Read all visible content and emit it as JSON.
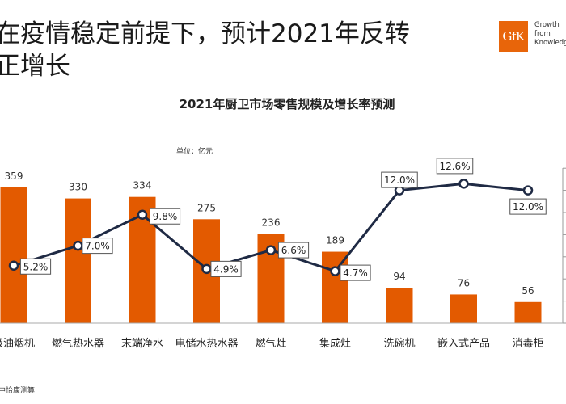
{
  "header": {
    "title_line1": "在疫情稳定前提下，预计2021年反转",
    "title_line2": "正增长",
    "logo_text": "GfK",
    "tagline": "Growth\nfrom\nKnowledge"
  },
  "footer": {
    "source": "中怡康测算"
  },
  "colors": {
    "bar": "#e35a00",
    "line": "#1f2a44",
    "logo": "#e8650a"
  },
  "chart_data": {
    "type": "bar",
    "title": "2021年厨卫市场零售规模及增长率预测",
    "unit": "单位：亿元",
    "categories": [
      "吸油烟机",
      "燃气热水器",
      "末端净水",
      "电储水热水器",
      "燃气灶",
      "集成灶",
      "洗碗机",
      "嵌入式产品",
      "消毒柜"
    ],
    "series": [
      {
        "type": "bar",
        "values": [
          359,
          330,
          334,
          275,
          236,
          189,
          94,
          76,
          56
        ]
      },
      {
        "type": "line",
        "values": [
          5.2,
          7.0,
          9.8,
          4.9,
          6.6,
          4.7,
          12.0,
          12.6,
          12.0
        ],
        "labels": [
          "5.2%",
          "7.0%",
          "9.8%",
          "4.9%",
          "6.6%",
          "4.7%",
          "12.0%",
          "12.6%",
          "12.0%"
        ]
      }
    ],
    "ylim": [
      0,
      400
    ],
    "y2lim": [
      0,
      16
    ],
    "legend": "none",
    "grid": false
  }
}
